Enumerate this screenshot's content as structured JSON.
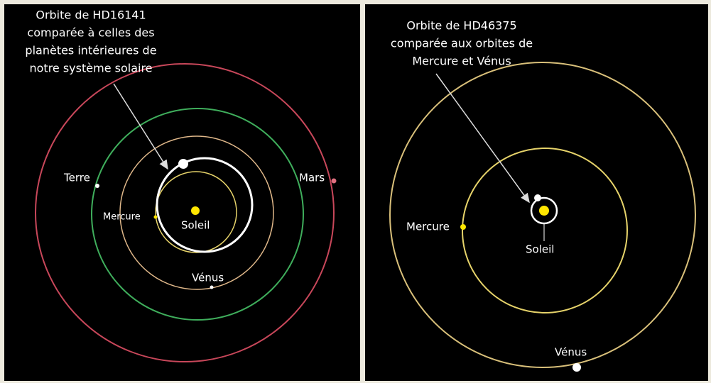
{
  "panels": [
    {
      "caption": [
        "Orbite de HD16141",
        "comparée à celles des",
        "planètes intérieures de",
        "notre système solaire"
      ],
      "labels": {
        "sun": "Soleil",
        "mercury": "Mercure",
        "venus": "Vénus",
        "earth": "Terre",
        "mars": "Mars"
      }
    },
    {
      "caption": [
        "Orbite de HD46375",
        "comparée aux orbites de",
        "Mercure et Vénus"
      ],
      "labels": {
        "sun": "Soleil",
        "mercury": "Mercure",
        "venus": "Vénus"
      }
    }
  ]
}
